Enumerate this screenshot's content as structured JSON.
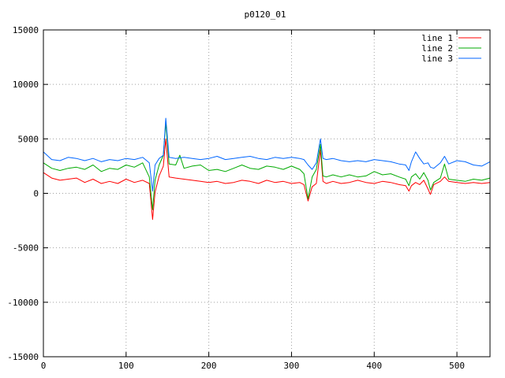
{
  "chart_data": {
    "type": "line",
    "title": "p0120_01",
    "xlabel": "",
    "ylabel": "",
    "xlim": [
      0,
      540
    ],
    "ylim": [
      -15000,
      15000
    ],
    "xticks": [
      0,
      100,
      200,
      300,
      400,
      500
    ],
    "yticks": [
      -15000,
      -10000,
      -5000,
      0,
      5000,
      10000,
      15000
    ],
    "grid": true,
    "legend_position": "top-right",
    "series": [
      {
        "name": "line 1",
        "color": "#ff0000",
        "x": [
          0,
          10,
          20,
          30,
          40,
          50,
          60,
          70,
          80,
          90,
          100,
          110,
          120,
          128,
          132,
          135,
          140,
          145,
          148,
          152,
          160,
          170,
          180,
          190,
          200,
          210,
          220,
          230,
          240,
          250,
          260,
          270,
          280,
          290,
          300,
          310,
          315,
          320,
          325,
          330,
          335,
          338,
          342,
          350,
          360,
          370,
          380,
          390,
          400,
          410,
          420,
          430,
          438,
          442,
          445,
          450,
          455,
          460,
          465,
          468,
          472,
          480,
          485,
          490,
          500,
          510,
          520,
          530,
          540
        ],
        "y": [
          1900,
          1400,
          1200,
          1300,
          1400,
          1000,
          1300,
          900,
          1100,
          900,
          1300,
          1000,
          1200,
          900,
          -2400,
          100,
          1600,
          2500,
          5000,
          1500,
          1400,
          1300,
          1200,
          1100,
          1000,
          1100,
          900,
          1000,
          1200,
          1100,
          900,
          1200,
          1000,
          1100,
          900,
          1000,
          800,
          -700,
          600,
          900,
          4000,
          1100,
          900,
          1100,
          900,
          1000,
          1200,
          1000,
          900,
          1100,
          1000,
          800,
          700,
          200,
          700,
          1000,
          800,
          1200,
          400,
          -100,
          800,
          1100,
          1500,
          1100,
          1000,
          900,
          1000,
          900,
          1000
        ]
      },
      {
        "name": "line 2",
        "color": "#00aa00",
        "x": [
          0,
          10,
          20,
          30,
          40,
          50,
          60,
          70,
          80,
          90,
          100,
          110,
          120,
          128,
          132,
          135,
          140,
          145,
          148,
          152,
          160,
          165,
          170,
          180,
          190,
          200,
          210,
          220,
          230,
          240,
          250,
          260,
          270,
          280,
          290,
          300,
          310,
          315,
          320,
          325,
          330,
          335,
          338,
          342,
          350,
          360,
          370,
          380,
          390,
          400,
          410,
          420,
          430,
          438,
          442,
          445,
          450,
          455,
          460,
          465,
          468,
          472,
          480,
          485,
          490,
          500,
          510,
          520,
          530,
          540
        ],
        "y": [
          2800,
          2300,
          2100,
          2300,
          2400,
          2200,
          2600,
          2000,
          2300,
          2200,
          2600,
          2400,
          2800,
          1500,
          -1500,
          1200,
          2600,
          3500,
          6500,
          2700,
          2600,
          3500,
          2300,
          2500,
          2600,
          2100,
          2200,
          2000,
          2300,
          2600,
          2300,
          2200,
          2500,
          2400,
          2200,
          2500,
          2200,
          1800,
          -500,
          1500,
          2200,
          4500,
          1600,
          1500,
          1700,
          1500,
          1700,
          1500,
          1600,
          2000,
          1700,
          1800,
          1500,
          1300,
          700,
          1500,
          1800,
          1300,
          1900,
          1200,
          300,
          1000,
          1400,
          2700,
          1300,
          1200,
          1100,
          1300,
          1200,
          1400
        ]
      },
      {
        "name": "line 3",
        "color": "#0066ff",
        "x": [
          0,
          10,
          20,
          30,
          40,
          50,
          60,
          70,
          80,
          90,
          100,
          110,
          120,
          128,
          132,
          135,
          140,
          145,
          148,
          152,
          160,
          170,
          180,
          190,
          200,
          210,
          220,
          230,
          240,
          250,
          260,
          270,
          280,
          290,
          300,
          310,
          315,
          320,
          325,
          330,
          335,
          338,
          342,
          350,
          360,
          370,
          380,
          390,
          400,
          410,
          420,
          430,
          438,
          442,
          445,
          450,
          455,
          460,
          465,
          468,
          472,
          480,
          485,
          490,
          500,
          510,
          520,
          530,
          540
        ],
        "y": [
          3800,
          3100,
          3000,
          3300,
          3200,
          3000,
          3200,
          2900,
          3100,
          3000,
          3200,
          3100,
          3300,
          2800,
          200,
          2600,
          3200,
          3500,
          6900,
          3300,
          3200,
          3300,
          3200,
          3100,
          3200,
          3400,
          3100,
          3200,
          3300,
          3400,
          3200,
          3100,
          3300,
          3200,
          3300,
          3200,
          3100,
          2600,
          2200,
          2800,
          5000,
          3200,
          3100,
          3200,
          3000,
          2900,
          3000,
          2900,
          3100,
          3000,
          2900,
          2700,
          2600,
          2100,
          2900,
          3800,
          3200,
          2700,
          2800,
          2400,
          2300,
          2800,
          3400,
          2700,
          3000,
          2900,
          2600,
          2500,
          2900
        ]
      }
    ]
  }
}
